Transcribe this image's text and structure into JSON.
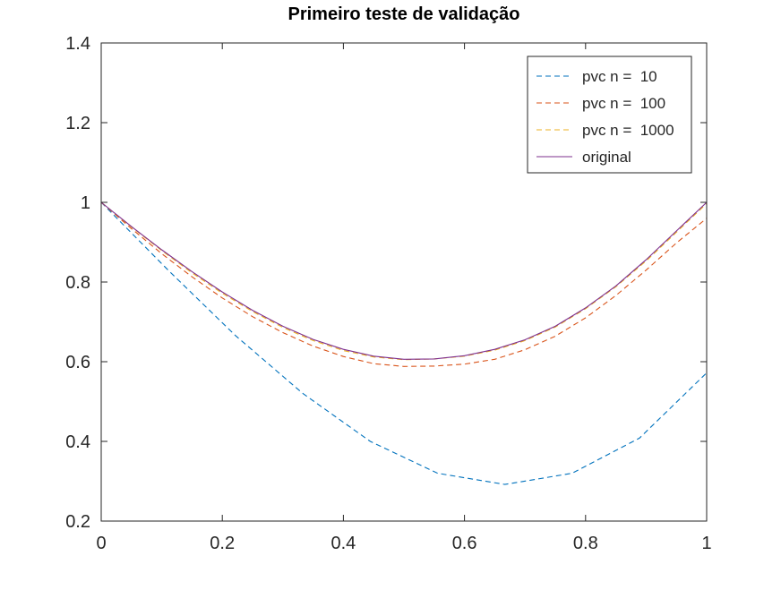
{
  "chart_data": {
    "type": "line",
    "title": "Primeiro teste de validação",
    "xlabel": "",
    "ylabel": "",
    "xlim": [
      0,
      1
    ],
    "ylim": [
      0.2,
      1.4
    ],
    "xticks": [
      "0",
      "0.2",
      "0.4",
      "0.6",
      "0.8",
      "1"
    ],
    "yticks": [
      "0.2",
      "0.4",
      "0.6",
      "0.8",
      "1",
      "1.2",
      "1.4"
    ],
    "xtick_values": [
      0,
      0.2,
      0.4,
      0.6,
      0.8,
      1
    ],
    "ytick_values": [
      0.2,
      0.4,
      0.6,
      0.8,
      1,
      1.2,
      1.4
    ],
    "grid": false,
    "legend_position": "top-right",
    "series": [
      {
        "name": "pvc n =  10",
        "style": "dashed",
        "color": "#0072BD",
        "x": [
          0,
          0.1111,
          0.2222,
          0.3333,
          0.4444,
          0.5556,
          0.6667,
          0.7778,
          0.8889,
          1
        ],
        "y": [
          1.0,
          0.829,
          0.665,
          0.52,
          0.4,
          0.32,
          0.292,
          0.32,
          0.408,
          0.572
        ]
      },
      {
        "name": "pvc n =  100",
        "style": "dashed",
        "color": "#D95319",
        "x": [
          0,
          0.05,
          0.1,
          0.15,
          0.2,
          0.25,
          0.3,
          0.35,
          0.4,
          0.45,
          0.5,
          0.55,
          0.6,
          0.65,
          0.7,
          0.75,
          0.8,
          0.85,
          0.9,
          0.95,
          1
        ],
        "y": [
          1.0,
          0.934,
          0.871,
          0.813,
          0.76,
          0.713,
          0.673,
          0.639,
          0.613,
          0.595,
          0.588,
          0.589,
          0.594,
          0.606,
          0.63,
          0.664,
          0.71,
          0.766,
          0.83,
          0.898,
          0.96
        ]
      },
      {
        "name": "pvc n =  1000",
        "style": "dashed",
        "color": "#EDB120",
        "x": [
          0,
          0.05,
          0.1,
          0.15,
          0.2,
          0.25,
          0.3,
          0.35,
          0.4,
          0.45,
          0.5,
          0.55,
          0.6,
          0.65,
          0.7,
          0.75,
          0.8,
          0.85,
          0.9,
          0.95,
          1
        ],
        "y": [
          1.0,
          0.938,
          0.879,
          0.823,
          0.772,
          0.726,
          0.686,
          0.653,
          0.628,
          0.612,
          0.605,
          0.607,
          0.614,
          0.629,
          0.653,
          0.687,
          0.733,
          0.788,
          0.853,
          0.925,
          0.997
        ]
      },
      {
        "name": "original",
        "style": "solid",
        "color": "#7E2F8E",
        "x": [
          0,
          0.05,
          0.1,
          0.15,
          0.2,
          0.25,
          0.3,
          0.35,
          0.4,
          0.45,
          0.5,
          0.55,
          0.6,
          0.65,
          0.7,
          0.75,
          0.8,
          0.85,
          0.9,
          0.95,
          1
        ],
        "y": [
          1.0,
          0.939,
          0.881,
          0.826,
          0.775,
          0.729,
          0.689,
          0.656,
          0.631,
          0.614,
          0.606,
          0.607,
          0.615,
          0.631,
          0.655,
          0.689,
          0.735,
          0.79,
          0.856,
          0.928,
          1.0
        ]
      }
    ]
  }
}
